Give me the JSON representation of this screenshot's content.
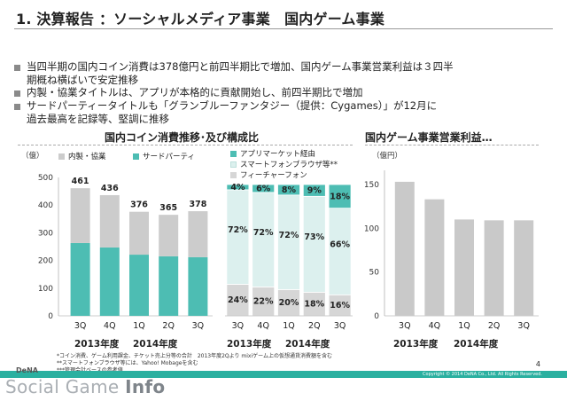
{
  "slide": {
    "title": "1. 決算報告 ：ソーシャルメディア事業　国内ゲーム事業",
    "bullets": [
      "当四半期の国内コイン消費は378億円と前四半期比で増加、国内ゲーム事業営業利益は３四半",
      "期概ね横ばいで安定推移",
      "内製・協業タイトルは、アプリが本格的に貢献開始し、前四半期比で増加",
      "サードパーティータイトルも「グランブルーファンタジー（提供：Cygames）」が12月に",
      "過去最高を記録等、堅調に推移"
    ],
    "section_left": "国内コイン消費推移･及び構成比",
    "section_right": "国内ゲーム事業営業利益…",
    "footnotes": [
      "*コイン消費、ゲーム利用課金、チケット売上分等の合計　2013年度2Qより mixiゲーム上の仮想通貨消費額を含む",
      "**スマートフォンブラウザ等には、Yahoo! Mobageを含む",
      "***管理会計ベースの参考値"
    ],
    "page_number": "4",
    "copyright": "Copyright © 2014 DeNA Co., Ltd. All Rights Reserved.",
    "brand": "DeNA",
    "watermark_a": "Social Game ",
    "watermark_b": "Info"
  },
  "colors": {
    "teal": "#4dbdb3",
    "gray": "#cccccc",
    "lightgray": "#c9c9c9",
    "pink": "#dcf0ee",
    "footer": "#2bb0a0"
  },
  "chart_data": [
    {
      "type": "bar",
      "stacked": true,
      "unit": "（億）",
      "categories": [
        "3Q",
        "4Q",
        "1Q",
        "2Q",
        "3Q"
      ],
      "fiscal_years": [
        "2013年度",
        "2014年度"
      ],
      "series": [
        {
          "name": "サードパーティ",
          "color": "#4dbdb3",
          "values": [
            263,
            247,
            221,
            215,
            212
          ]
        },
        {
          "name": "内製・協業",
          "color": "#cccccc",
          "values": [
            198,
            189,
            155,
            150,
            166
          ]
        }
      ],
      "totals": [
        461,
        436,
        376,
        365,
        378
      ],
      "ylim": [
        0,
        500
      ],
      "yticks": [
        0,
        100,
        200,
        300,
        400,
        500
      ]
    },
    {
      "type": "bar",
      "stacked": true,
      "percent": true,
      "categories": [
        "3Q",
        "4Q",
        "1Q",
        "2Q",
        "3Q"
      ],
      "fiscal_years": [
        "2013年度",
        "2014年度"
      ],
      "series": [
        {
          "name": "フィーチャーフォン",
          "color": "#d6d6d6",
          "values": [
            24,
            22,
            20,
            18,
            16
          ],
          "labels": [
            "24%",
            "22%",
            "20%",
            "18%",
            "16%"
          ]
        },
        {
          "name": "スマートフォンブラウザ等**",
          "color": "#dcf0ee",
          "values": [
            72,
            72,
            72,
            73,
            66
          ],
          "labels": [
            "72%",
            "72%",
            "72%",
            "73%",
            "66%"
          ]
        },
        {
          "name": "アプリマーケット経由",
          "color": "#4dbdb3",
          "values": [
            4,
            6,
            8,
            9,
            18
          ],
          "labels": [
            "4%",
            "6%",
            "8%",
            "9%",
            "18%"
          ]
        }
      ]
    },
    {
      "type": "bar",
      "unit": "（億円）",
      "categories": [
        "3Q",
        "4Q",
        "1Q",
        "2Q",
        "3Q"
      ],
      "fiscal_years": [
        "2013年度",
        "2014年度"
      ],
      "values": [
        153,
        133,
        110,
        109,
        109
      ],
      "color": "#c9c9c9",
      "ylim": [
        0,
        160
      ],
      "yticks": [
        0,
        50,
        100,
        150
      ]
    }
  ]
}
